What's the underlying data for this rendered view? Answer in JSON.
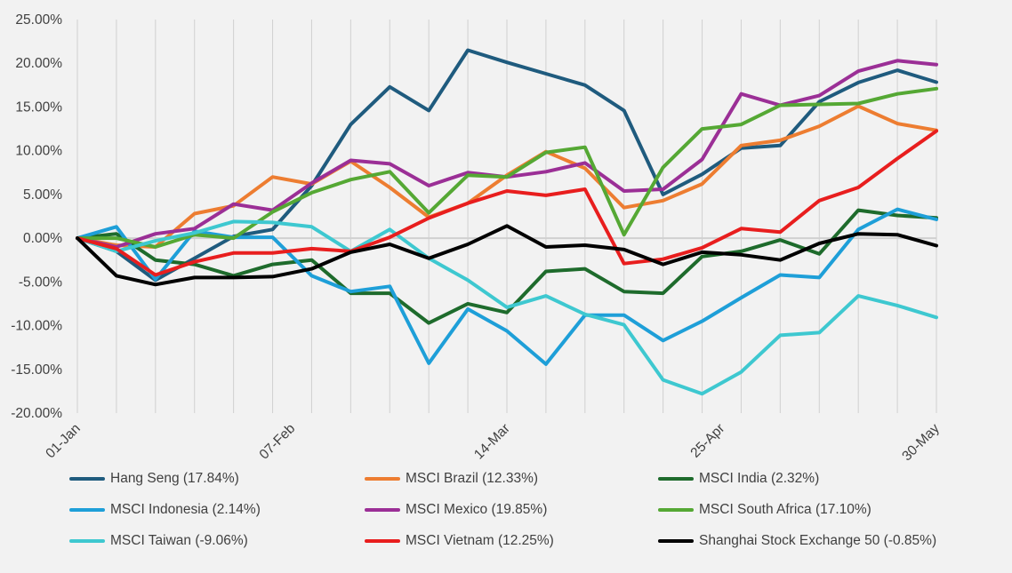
{
  "chart_data": {
    "type": "line",
    "title": "",
    "xlabel": "",
    "ylabel": "",
    "x_tick_labels": [
      "01-Jan",
      "07-Feb",
      "14-Mar",
      "25-Apr",
      "30-May"
    ],
    "y_tick_labels": [
      "25.00%",
      "20.00%",
      "15.00%",
      "10.00%",
      "5.00%",
      "0.00%",
      "-5.00%",
      "-10.00%",
      "-15.00%",
      "-20.00%"
    ],
    "ylim": [
      -20,
      25
    ],
    "grid": "vertical",
    "legend_position": "bottom",
    "n_points": 23,
    "series": [
      {
        "name": "Hang Seng (17.84%)",
        "color": "#1f5b7e",
        "values": [
          0,
          -1.5,
          -4.8,
          -2.3,
          0.2,
          1,
          6,
          13,
          17.3,
          14.6,
          21.5,
          20.1,
          18.8,
          17.5,
          14.6,
          5,
          7.3,
          10.3,
          10.6,
          15.6,
          17.8,
          19.2,
          17.84
        ]
      },
      {
        "name": "MSCI Brazil (12.33%)",
        "color": "#ed7d31",
        "values": [
          0,
          -0.8,
          -1,
          2.8,
          3.7,
          7,
          6.2,
          8.8,
          5.8,
          2.4,
          4,
          7.2,
          9.9,
          8,
          3.5,
          4.3,
          6.2,
          10.6,
          11.2,
          12.8,
          15.1,
          13.1,
          12.33
        ]
      },
      {
        "name": "MSCI India (2.32%)",
        "color": "#1e6b2c",
        "values": [
          0,
          0.5,
          -2.5,
          -3,
          -4.3,
          -3,
          -2.5,
          -6.3,
          -6.3,
          -9.7,
          -7.5,
          -8.5,
          -3.8,
          -3.5,
          -6.1,
          -6.3,
          -2.1,
          -1.5,
          -0.2,
          -1.8,
          3.2,
          2.6,
          2.32
        ]
      },
      {
        "name": "MSCI Indonesia (2.14%)",
        "color": "#1e9fd8",
        "values": [
          0,
          1.3,
          -4.7,
          0.8,
          0.1,
          0.1,
          -4.3,
          -6.1,
          -5.5,
          -14.3,
          -8.1,
          -10.6,
          -14.4,
          -8.8,
          -8.8,
          -11.7,
          -9.5,
          -6.8,
          -4.2,
          -4.5,
          1,
          3.3,
          2.14
        ]
      },
      {
        "name": "MSCI Mexico (19.85%)",
        "color": "#9b2f96",
        "values": [
          0,
          -1,
          0.5,
          1.1,
          3.9,
          3.2,
          6.3,
          8.9,
          8.5,
          6,
          7.5,
          7,
          7.6,
          8.6,
          5.4,
          5.6,
          9,
          16.5,
          15.2,
          16.3,
          19.1,
          20.3,
          19.85
        ]
      },
      {
        "name": "MSCI South Africa (17.10%)",
        "color": "#55a834",
        "values": [
          0,
          0,
          -1,
          0.4,
          0,
          3,
          5.2,
          6.7,
          7.6,
          2.9,
          7.2,
          7,
          9.8,
          10.4,
          0.4,
          8.1,
          12.5,
          13,
          15.2,
          15.3,
          15.4,
          16.5,
          17.1
        ]
      },
      {
        "name": "MSCI Taiwan (-9.06%)",
        "color": "#3ec8d0",
        "values": [
          0,
          -1.5,
          -0.3,
          0.6,
          1.9,
          1.8,
          1.3,
          -1.5,
          1,
          -2.3,
          -4.8,
          -7.9,
          -6.6,
          -8.7,
          -9.9,
          -16.2,
          -17.8,
          -15.3,
          -11.1,
          -10.8,
          -6.6,
          -7.7,
          -9.06
        ]
      },
      {
        "name": "MSCI Vietnam (12.25%)",
        "color": "#e81e1e",
        "values": [
          0,
          -1.2,
          -4.2,
          -2.7,
          -1.7,
          -1.7,
          -1.2,
          -1.5,
          0.1,
          2.3,
          4,
          5.4,
          4.9,
          5.6,
          -2.9,
          -2.4,
          -1.1,
          1.1,
          0.7,
          4.3,
          5.8,
          9.1,
          12.25
        ]
      },
      {
        "name": "Shanghai Stock Exchange 50 (-0.85%)",
        "color": "#000000",
        "values": [
          0,
          -4.3,
          -5.3,
          -4.5,
          -4.5,
          -4.4,
          -3.5,
          -1.6,
          -0.7,
          -2.3,
          -0.7,
          1.4,
          -1,
          -0.8,
          -1.3,
          -3,
          -1.6,
          -1.9,
          -2.5,
          -0.6,
          0.5,
          0.4,
          -0.85
        ]
      }
    ]
  }
}
